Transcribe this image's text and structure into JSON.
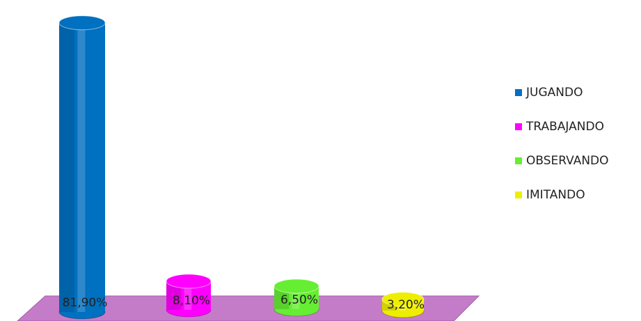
{
  "chart_data": {
    "type": "bar",
    "series": [
      {
        "name": "JUGANDO",
        "color": "#0070c0",
        "values": [
          81.9
        ],
        "value_labels": [
          "81,90%"
        ]
      },
      {
        "name": "TRABAJANDO",
        "color": "#ff00ff",
        "values": [
          8.1
        ],
        "value_labels": [
          "8,10%"
        ]
      },
      {
        "name": "OBSERVANDO",
        "color": "#66ee33",
        "values": [
          6.5
        ],
        "value_labels": [
          "6,50%"
        ]
      },
      {
        "name": "IMITANDO",
        "color": "#eeee00",
        "values": [
          3.2
        ],
        "value_labels": [
          "3,20%"
        ]
      }
    ],
    "legend": "right"
  }
}
